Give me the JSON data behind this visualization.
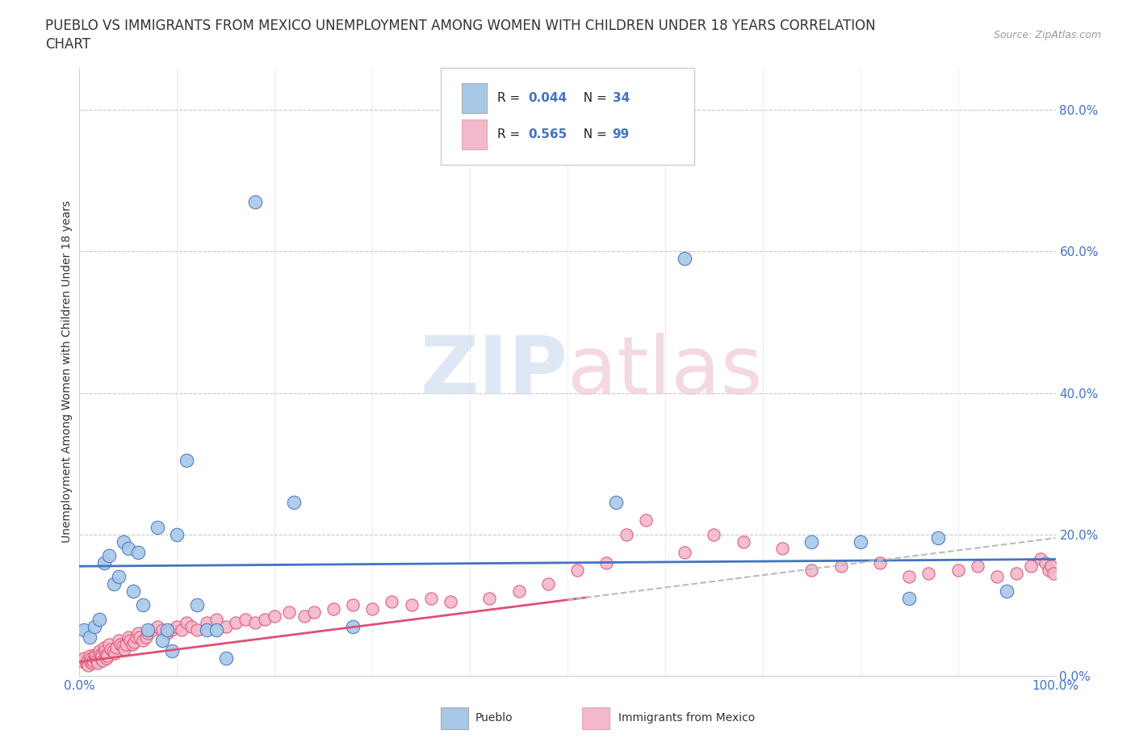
{
  "title_line1": "PUEBLO VS IMMIGRANTS FROM MEXICO UNEMPLOYMENT AMONG WOMEN WITH CHILDREN UNDER 18 YEARS CORRELATION",
  "title_line2": "CHART",
  "source": "Source: ZipAtlas.com",
  "ylabel": "Unemployment Among Women with Children Under 18 years",
  "legend_entries": [
    {
      "label": "Pueblo",
      "R": "0.044",
      "N": "34",
      "dot_color": "#a8c8e8",
      "line_color": "#4472c4"
    },
    {
      "label": "Immigrants from Mexico",
      "R": "0.565",
      "N": "99",
      "dot_color": "#f4b8cc",
      "line_color": "#e05070"
    }
  ],
  "watermark_text": "ZIPatlas",
  "xlim": [
    0.0,
    1.0
  ],
  "ylim": [
    0.0,
    0.86
  ],
  "yticks": [
    0.0,
    0.2,
    0.4,
    0.6,
    0.8
  ],
  "ytick_labels": [
    "0.0%",
    "20.0%",
    "40.0%",
    "60.0%",
    "80.0%"
  ],
  "grid_color": "#c8c8c8",
  "bg_color": "#ffffff",
  "blue_x": [
    0.005,
    0.01,
    0.015,
    0.02,
    0.025,
    0.03,
    0.035,
    0.04,
    0.045,
    0.05,
    0.055,
    0.06,
    0.065,
    0.07,
    0.08,
    0.085,
    0.09,
    0.095,
    0.1,
    0.11,
    0.12,
    0.13,
    0.14,
    0.15,
    0.18,
    0.22,
    0.28,
    0.55,
    0.62,
    0.75,
    0.8,
    0.85,
    0.88,
    0.95
  ],
  "blue_y": [
    0.065,
    0.055,
    0.07,
    0.08,
    0.16,
    0.17,
    0.13,
    0.14,
    0.19,
    0.18,
    0.12,
    0.175,
    0.1,
    0.065,
    0.21,
    0.05,
    0.065,
    0.035,
    0.2,
    0.305,
    0.1,
    0.065,
    0.065,
    0.025,
    0.67,
    0.245,
    0.07,
    0.245,
    0.59,
    0.19,
    0.19,
    0.11,
    0.195,
    0.12
  ],
  "pink_x": [
    0.003,
    0.005,
    0.007,
    0.008,
    0.009,
    0.01,
    0.011,
    0.012,
    0.013,
    0.014,
    0.015,
    0.016,
    0.017,
    0.018,
    0.019,
    0.02,
    0.021,
    0.022,
    0.023,
    0.024,
    0.025,
    0.026,
    0.027,
    0.028,
    0.029,
    0.03,
    0.032,
    0.034,
    0.036,
    0.038,
    0.04,
    0.042,
    0.044,
    0.046,
    0.048,
    0.05,
    0.052,
    0.054,
    0.056,
    0.058,
    0.06,
    0.062,
    0.065,
    0.068,
    0.07,
    0.075,
    0.08,
    0.085,
    0.09,
    0.095,
    0.1,
    0.105,
    0.11,
    0.115,
    0.12,
    0.13,
    0.14,
    0.15,
    0.16,
    0.17,
    0.18,
    0.19,
    0.2,
    0.215,
    0.23,
    0.24,
    0.26,
    0.28,
    0.3,
    0.32,
    0.34,
    0.36,
    0.38,
    0.42,
    0.45,
    0.48,
    0.51,
    0.54,
    0.56,
    0.58,
    0.62,
    0.65,
    0.68,
    0.72,
    0.75,
    0.78,
    0.82,
    0.85,
    0.87,
    0.9,
    0.92,
    0.94,
    0.96,
    0.975,
    0.985,
    0.99,
    0.993,
    0.995,
    0.998
  ],
  "pink_y": [
    0.02,
    0.025,
    0.018,
    0.022,
    0.015,
    0.028,
    0.02,
    0.025,
    0.018,
    0.022,
    0.03,
    0.025,
    0.028,
    0.022,
    0.018,
    0.035,
    0.03,
    0.025,
    0.028,
    0.022,
    0.04,
    0.035,
    0.03,
    0.025,
    0.028,
    0.045,
    0.038,
    0.035,
    0.032,
    0.04,
    0.05,
    0.045,
    0.042,
    0.038,
    0.045,
    0.055,
    0.05,
    0.045,
    0.048,
    0.055,
    0.06,
    0.055,
    0.05,
    0.055,
    0.06,
    0.065,
    0.07,
    0.065,
    0.06,
    0.065,
    0.07,
    0.065,
    0.075,
    0.07,
    0.065,
    0.075,
    0.08,
    0.07,
    0.075,
    0.08,
    0.075,
    0.08,
    0.085,
    0.09,
    0.085,
    0.09,
    0.095,
    0.1,
    0.095,
    0.105,
    0.1,
    0.11,
    0.105,
    0.11,
    0.12,
    0.13,
    0.15,
    0.16,
    0.2,
    0.22,
    0.175,
    0.2,
    0.19,
    0.18,
    0.15,
    0.155,
    0.16,
    0.14,
    0.145,
    0.15,
    0.155,
    0.14,
    0.145,
    0.155,
    0.165,
    0.16,
    0.15,
    0.155,
    0.145
  ],
  "blue_trend_x": [
    0.0,
    1.0
  ],
  "blue_trend_y": [
    0.155,
    0.165
  ],
  "pink_trend_x": [
    0.0,
    1.0
  ],
  "pink_trend_y": [
    0.02,
    0.195
  ],
  "title_fs": 12,
  "tick_fs": 11,
  "label_fs": 10,
  "legend_fs": 11,
  "source_fs": 9
}
